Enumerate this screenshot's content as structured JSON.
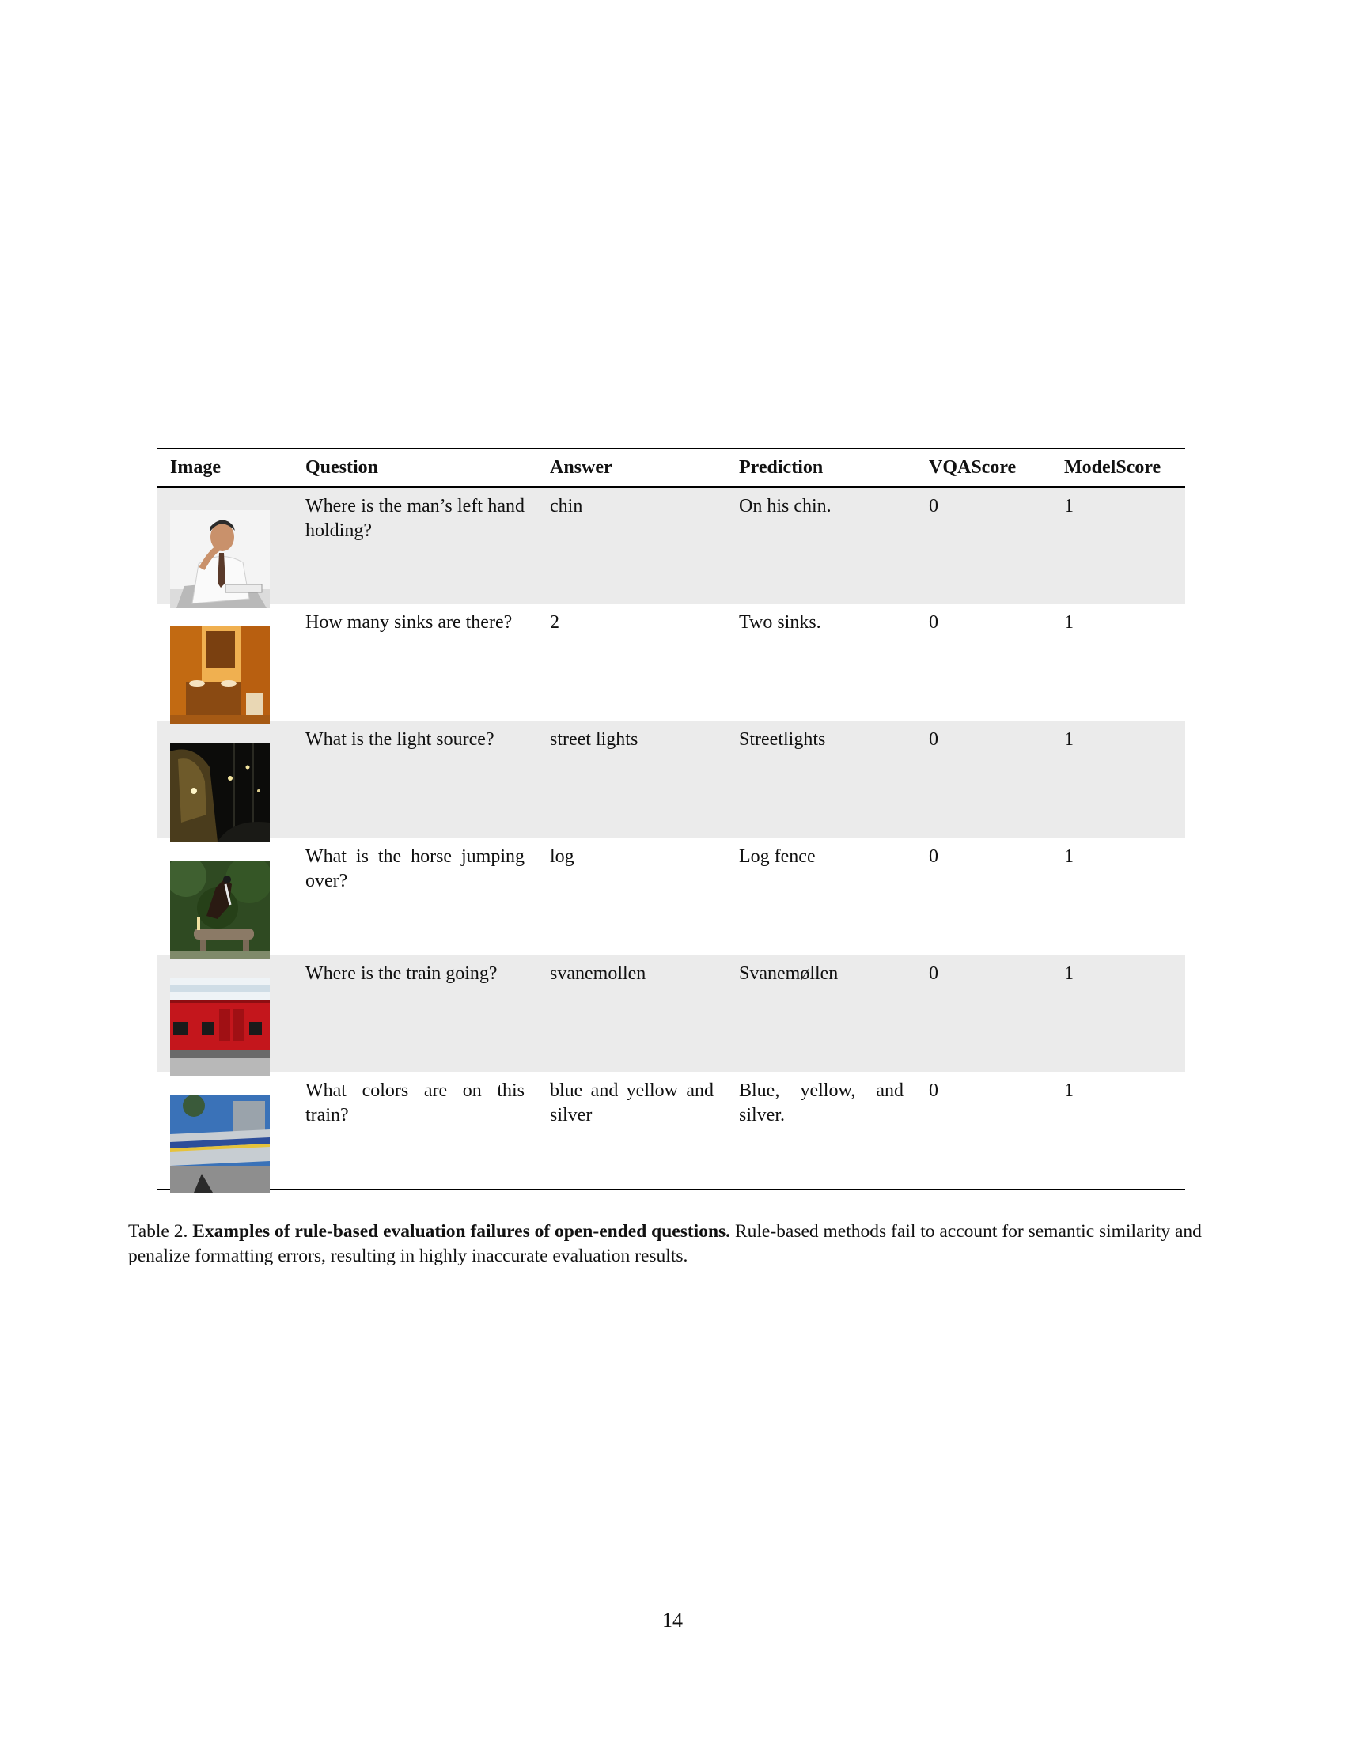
{
  "table": {
    "headers": [
      "Image",
      "Question",
      "Answer",
      "Prediction",
      "VQAScore",
      "ModelScore"
    ],
    "rows": [
      {
        "image_icon": "man-holding-chin-photo",
        "question": "Where is the man’s left hand holding?",
        "answer": "chin",
        "prediction": "On his chin.",
        "vqascore": "0",
        "modelscore": "1"
      },
      {
        "image_icon": "bathroom-sinks-photo",
        "question": "How many sinks are there?",
        "answer": "2",
        "prediction": "Two sinks.",
        "vqascore": "0",
        "modelscore": "1"
      },
      {
        "image_icon": "street-lights-photo",
        "question": "What is the light source?",
        "answer": "street lights",
        "prediction": "Streetlights",
        "vqascore": "0",
        "modelscore": "1"
      },
      {
        "image_icon": "horse-jumping-photo",
        "question": "What is the horse jumping over?",
        "answer": "log",
        "prediction": "Log fence",
        "vqascore": "0",
        "modelscore": "1"
      },
      {
        "image_icon": "red-train-photo",
        "question": "Where is the train going?",
        "answer": "svanemollen",
        "prediction": "Svanemøllen",
        "vqascore": "0",
        "modelscore": "1"
      },
      {
        "image_icon": "silver-train-photo",
        "question": "What colors are on this train?",
        "answer": "blue and yellow and silver",
        "prediction": "Blue, yellow, and silver.",
        "vqascore": "0",
        "modelscore": "1"
      }
    ]
  },
  "caption": {
    "label": "Table 2.",
    "lead": "Examples of rule-based evaluation failures of open-ended questions.",
    "text": "Rule-based methods fail to account for semantic similarity and penalize formatting errors, resulting in highly inaccurate evaluation results."
  },
  "page_number": "14"
}
